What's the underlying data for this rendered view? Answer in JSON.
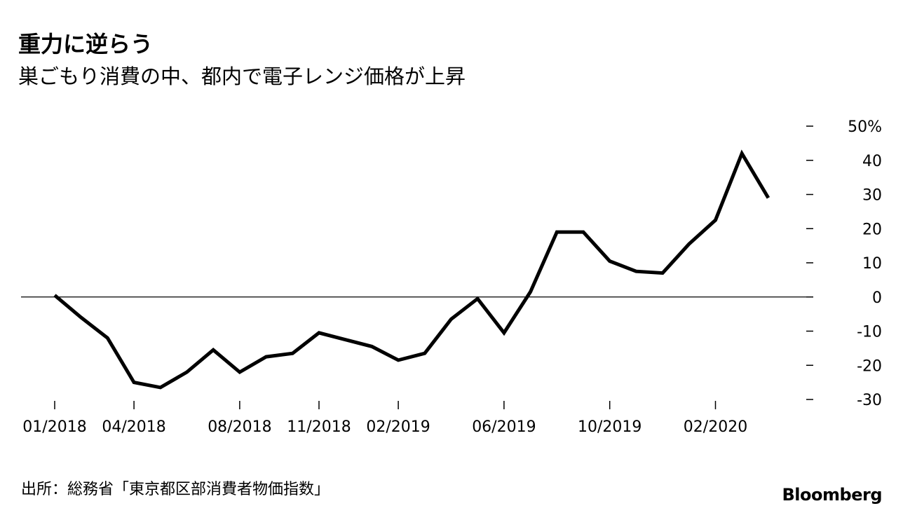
{
  "title": "重力に逆らう",
  "subtitle": "巣ごもり消費の中、都内で電子レンジ価格が上昇",
  "source": "出所：総務省「東京都区部消費者物価指数」",
  "brand": "Bloomberg",
  "chart_data": {
    "type": "line",
    "title": "重力に逆らう",
    "subtitle": "巣ごもり消費の中、都内で電子レンジ価格が上昇",
    "xlabel": "",
    "ylabel": "",
    "ylim": [
      -30,
      50
    ],
    "y_ticks": [
      50,
      40,
      30,
      20,
      10,
      0,
      -10,
      -20,
      -30
    ],
    "y_tick_labels": [
      "50%",
      "40",
      "30",
      "20",
      "10",
      "0",
      "-10",
      "-20",
      "-30"
    ],
    "x_ticks": [
      "01/2018",
      "04/2018",
      "08/2018",
      "11/2018",
      "02/2019",
      "06/2019",
      "10/2019",
      "02/2020"
    ],
    "grid": false,
    "reference_line": 0,
    "line_color": "#000000",
    "series": [
      {
        "x": [
          "01/2018",
          "02/2018",
          "03/2018",
          "04/2018",
          "05/2018",
          "06/2018",
          "07/2018",
          "08/2018",
          "09/2018",
          "10/2018",
          "11/2018",
          "12/2018",
          "01/2019",
          "02/2019",
          "03/2019",
          "04/2019",
          "05/2019",
          "06/2019",
          "07/2019",
          "08/2019",
          "09/2019",
          "10/2019",
          "11/2019",
          "12/2019",
          "01/2020",
          "02/2020",
          "03/2020",
          "04/2020"
        ],
        "values": [
          0.5,
          -6,
          -12,
          -25,
          -26.5,
          -22,
          -15.5,
          -22,
          -17.5,
          -16.5,
          -10.5,
          -12.5,
          -14.5,
          -18.5,
          -16.5,
          -6.5,
          -0.5,
          -10.5,
          1.5,
          19,
          19,
          10.5,
          7.5,
          7,
          15.5,
          22.5,
          42,
          29
        ]
      }
    ]
  }
}
